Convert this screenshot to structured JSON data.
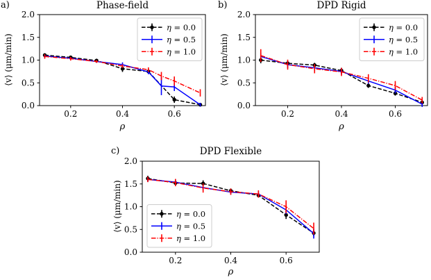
{
  "figure": {
    "background": "#ffffff"
  },
  "chart_data": [
    {
      "type": "line",
      "panel_label": "a)",
      "title": "Phase-field",
      "xlabel": "ρ",
      "ylabel": "⟨v⟩ (μm/min)",
      "xlim": [
        0.08,
        0.72
      ],
      "ylim": [
        0,
        2
      ],
      "xticks": [
        0.2,
        0.4,
        0.6
      ],
      "yticks": [
        0.0,
        0.5,
        1.0,
        1.5,
        2.0
      ],
      "grid": false,
      "legend_position": "upper right",
      "series": [
        {
          "name": "η = 0.0",
          "color": "#000000",
          "linestyle": "dashed",
          "marker": "circle",
          "x": [
            0.1,
            0.2,
            0.3,
            0.4,
            0.5,
            0.6,
            0.7
          ],
          "y": [
            1.11,
            1.06,
            0.99,
            0.81,
            0.75,
            0.13,
            0.02
          ],
          "yerr": [
            0.04,
            0.03,
            0.04,
            0.07,
            0.05,
            0.07,
            0.04
          ]
        },
        {
          "name": "η = 0.5",
          "color": "#0000ff",
          "linestyle": "solid",
          "marker": "none",
          "x": [
            0.1,
            0.2,
            0.3,
            0.4,
            0.5,
            0.55,
            0.6,
            0.7
          ],
          "y": [
            1.09,
            1.04,
            0.97,
            0.9,
            0.74,
            0.43,
            0.41,
            0.02
          ],
          "yerr": [
            0.04,
            0.03,
            0.03,
            0.05,
            0.05,
            0.2,
            0.09,
            0.04
          ]
        },
        {
          "name": "η = 1.0",
          "color": "#ff0000",
          "linestyle": "dashdot",
          "marker": "none",
          "x": [
            0.1,
            0.2,
            0.3,
            0.4,
            0.5,
            0.55,
            0.6,
            0.7
          ],
          "y": [
            1.08,
            1.03,
            0.97,
            0.87,
            0.79,
            0.65,
            0.54,
            0.28
          ],
          "yerr": [
            0.05,
            0.04,
            0.03,
            0.04,
            0.05,
            0.09,
            0.1,
            0.08
          ]
        }
      ]
    },
    {
      "type": "line",
      "panel_label": "b)",
      "title": "DPD Rigid",
      "xlabel": "ρ",
      "ylabel": "⟨v⟩ (μm/min)",
      "xlim": [
        0.08,
        0.72
      ],
      "ylim": [
        0,
        2
      ],
      "xticks": [
        0.2,
        0.4,
        0.6
      ],
      "yticks": [
        0.0,
        0.5,
        1.0,
        1.5,
        2.0
      ],
      "grid": false,
      "legend_position": "upper right",
      "series": [
        {
          "name": "η = 0.0",
          "color": "#000000",
          "linestyle": "dashed",
          "marker": "circle",
          "x": [
            0.1,
            0.2,
            0.3,
            0.4,
            0.5,
            0.6,
            0.7
          ],
          "y": [
            1.0,
            0.93,
            0.89,
            0.77,
            0.44,
            0.27,
            0.07
          ],
          "yerr": [
            0.07,
            0.05,
            0.05,
            0.06,
            0.05,
            0.05,
            0.05
          ]
        },
        {
          "name": "η = 0.5",
          "color": "#0000ff",
          "linestyle": "solid",
          "marker": "none",
          "x": [
            0.1,
            0.2,
            0.3,
            0.4,
            0.5,
            0.6,
            0.7
          ],
          "y": [
            1.08,
            0.9,
            0.83,
            0.75,
            0.54,
            0.34,
            0.03
          ],
          "yerr": [
            0.08,
            0.08,
            0.07,
            0.07,
            0.06,
            0.07,
            0.06
          ]
        },
        {
          "name": "η = 1.0",
          "color": "#ff0000",
          "linestyle": "dashdot",
          "marker": "none",
          "x": [
            0.1,
            0.2,
            0.3,
            0.4,
            0.5,
            0.6,
            0.7
          ],
          "y": [
            1.1,
            0.9,
            0.81,
            0.74,
            0.6,
            0.44,
            0.12
          ],
          "yerr": [
            0.14,
            0.11,
            0.1,
            0.09,
            0.09,
            0.1,
            0.07
          ]
        }
      ]
    },
    {
      "type": "line",
      "panel_label": "c)",
      "title": "DPD Flexible",
      "xlabel": "ρ",
      "ylabel": "⟨v⟩ (μm/min)",
      "xlim": [
        0.08,
        0.72
      ],
      "ylim": [
        0,
        2
      ],
      "xticks": [
        0.2,
        0.4,
        0.6
      ],
      "yticks": [
        0.0,
        0.5,
        1.0,
        1.5,
        2.0
      ],
      "grid": false,
      "legend_position": "lower left",
      "series": [
        {
          "name": "η = 0.0",
          "color": "#000000",
          "linestyle": "dashed",
          "marker": "circle",
          "x": [
            0.1,
            0.2,
            0.3,
            0.4,
            0.5,
            0.6,
            0.7
          ],
          "y": [
            1.62,
            1.52,
            1.51,
            1.35,
            1.25,
            0.82,
            0.42
          ],
          "yerr": [
            0.06,
            0.06,
            0.07,
            0.05,
            0.05,
            0.09,
            0.07
          ]
        },
        {
          "name": "η = 0.5",
          "color": "#0000ff",
          "linestyle": "solid",
          "marker": "none",
          "x": [
            0.1,
            0.2,
            0.3,
            0.4,
            0.5,
            0.6,
            0.7
          ],
          "y": [
            1.6,
            1.54,
            1.42,
            1.32,
            1.28,
            0.93,
            0.41
          ],
          "yerr": [
            0.05,
            0.06,
            0.06,
            0.05,
            0.06,
            0.09,
            0.11
          ]
        },
        {
          "name": "η = 1.0",
          "color": "#ff0000",
          "linestyle": "dashdot",
          "marker": "none",
          "x": [
            0.1,
            0.2,
            0.3,
            0.4,
            0.5,
            0.6,
            0.7
          ],
          "y": [
            1.6,
            1.53,
            1.41,
            1.33,
            1.28,
            1.0,
            0.52
          ],
          "yerr": [
            0.06,
            0.08,
            0.1,
            0.07,
            0.08,
            0.14,
            0.13
          ]
        }
      ]
    }
  ]
}
